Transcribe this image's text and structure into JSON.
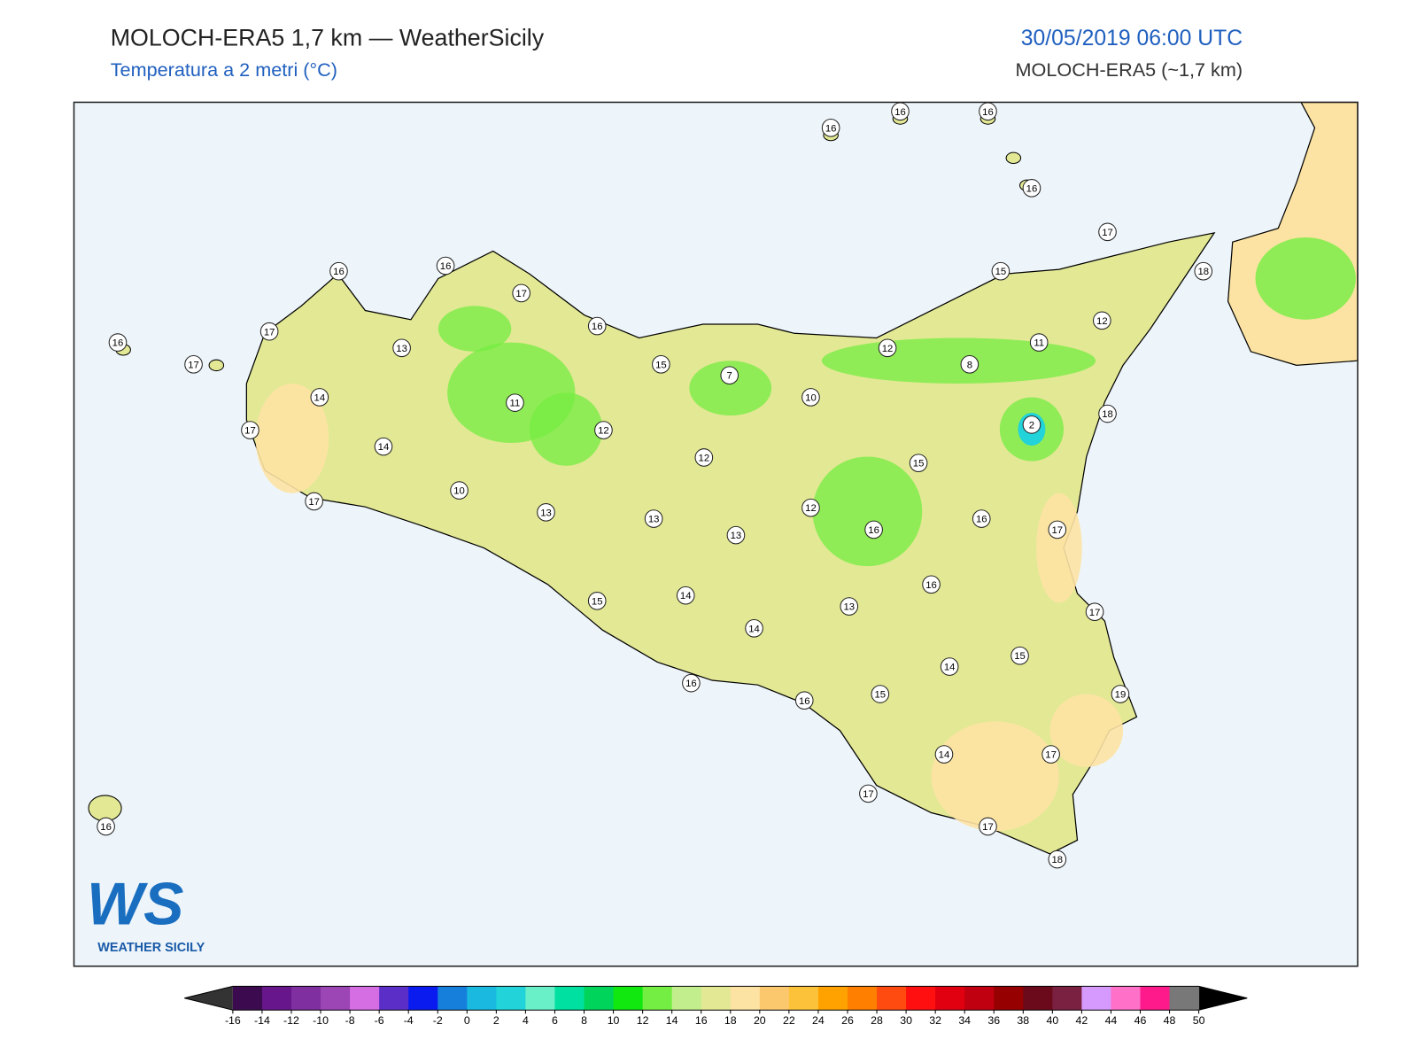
{
  "header": {
    "title": "MOLOCH-ERA5 1,7 km — WeatherSicily",
    "subtitle": "Temperatura a 2 metri (°C)",
    "datetime": "30/05/2019 06:00 UTC",
    "model": "MOLOCH-ERA5 (~1,7 km)"
  },
  "map": {
    "sea_color": "#edf5fa",
    "land_color": "#e3e895",
    "stations": [
      16,
      16,
      16,
      16,
      17,
      18,
      15,
      12,
      11,
      12,
      8,
      10,
      2,
      18,
      7,
      15,
      16,
      17,
      16,
      16,
      17,
      16,
      17,
      13,
      14,
      17,
      14,
      11,
      12,
      12,
      15,
      10,
      17,
      13,
      13,
      13,
      12,
      16,
      16,
      17,
      16,
      13,
      14,
      15,
      14,
      17,
      15,
      14,
      19,
      15,
      16,
      16,
      14,
      17,
      17,
      17,
      18,
      16
    ]
  },
  "logo": {
    "mark": "WS",
    "name": "WEATHER SICILY"
  },
  "colorbar": {
    "ticks": [
      -16,
      -14,
      -12,
      -10,
      -8,
      -6,
      -4,
      -2,
      0,
      2,
      4,
      6,
      8,
      10,
      12,
      14,
      16,
      18,
      20,
      22,
      24,
      26,
      28,
      30,
      32,
      34,
      36,
      38,
      40,
      42,
      44,
      46,
      48,
      50
    ],
    "colors": [
      "#3b0a4f",
      "#68168c",
      "#7f2fa0",
      "#9b46b4",
      "#d66ee3",
      "#5b2fc7",
      "#0a1bf0",
      "#157fdb",
      "#1ab9e0",
      "#22d3d9",
      "#6af0c8",
      "#00e0a0",
      "#00d45a",
      "#10e810",
      "#74ee42",
      "#c3ee8e",
      "#e3e895",
      "#fde3a3",
      "#fcc86e",
      "#fcc23a",
      "#ffa200",
      "#ff7f00",
      "#ff4a10",
      "#ff0f0f",
      "#e00010",
      "#c00010",
      "#960000",
      "#6a0a1a",
      "#7a2040",
      "#d69aff",
      "#ff70c8",
      "#ff1a8c",
      "#787878"
    ],
    "under_color": "#333333",
    "over_color": "#000000"
  }
}
